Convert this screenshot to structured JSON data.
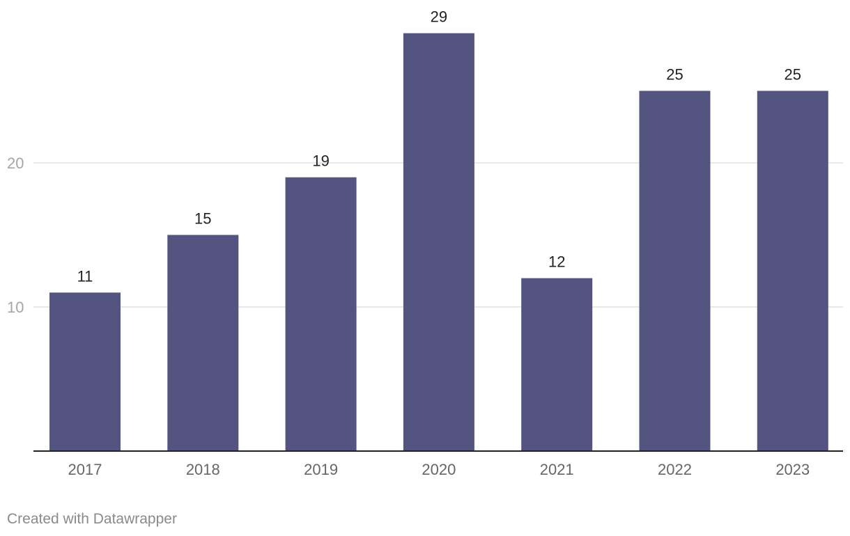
{
  "chart_data": {
    "type": "bar",
    "categories": [
      "2017",
      "2018",
      "2019",
      "2020",
      "2021",
      "2022",
      "2023"
    ],
    "values": [
      11,
      15,
      19,
      29,
      12,
      25,
      25
    ],
    "title": "",
    "xlabel": "",
    "ylabel": "",
    "ylim": [
      0,
      29
    ],
    "yticks": [
      10,
      20
    ],
    "grid": true,
    "show_data_labels": true,
    "colors": {
      "bar": "#535480",
      "gridline": "#e1e1e1",
      "baseline": "#222222",
      "tick_label": "#a5a5a5",
      "category_label": "#666666",
      "data_label": "#222222"
    }
  },
  "footer": {
    "credit": "Created with Datawrapper"
  }
}
